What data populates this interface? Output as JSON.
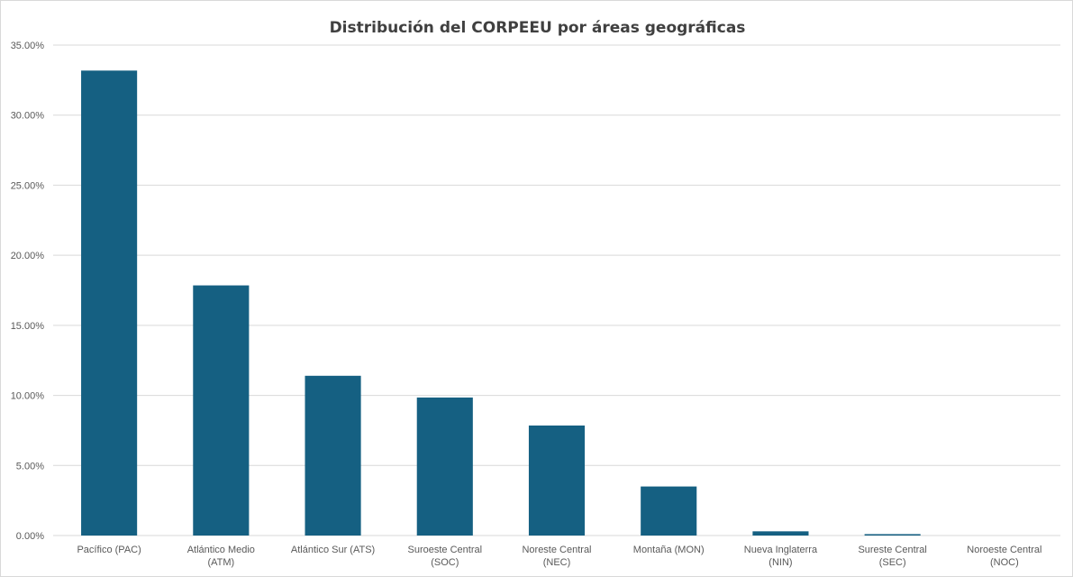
{
  "chart_data": {
    "type": "bar",
    "title": "Distribución del CORPEEU por áreas geográficas",
    "xlabel": "",
    "ylabel": "",
    "categories": [
      "Pacífico (PAC)",
      "Atlántico Medio (ATM)",
      "Atlántico Sur (ATS)",
      "Suroeste Central (SOC)",
      "Noreste Central (NEC)",
      "Montaña (MON)",
      "Nueva Inglaterra (NIN)",
      "Sureste Central (SEC)",
      "Noroeste Central (NOC)"
    ],
    "values": [
      0.3318,
      0.1785,
      0.114,
      0.0985,
      0.0785,
      0.035,
      0.003,
      0.001,
      0.0
    ],
    "ylim": [
      0,
      0.35
    ],
    "yticks": [
      0,
      0.05,
      0.1,
      0.15,
      0.2,
      0.25,
      0.3,
      0.35
    ],
    "ytick_labels": [
      "0.00%",
      "5.00%",
      "10.00%",
      "15.00%",
      "20.00%",
      "25.00%",
      "30.00%",
      "35.00%"
    ],
    "grid": true,
    "legend": "none",
    "bar_color": "#156082",
    "grid_color": "#d9d9d9"
  }
}
